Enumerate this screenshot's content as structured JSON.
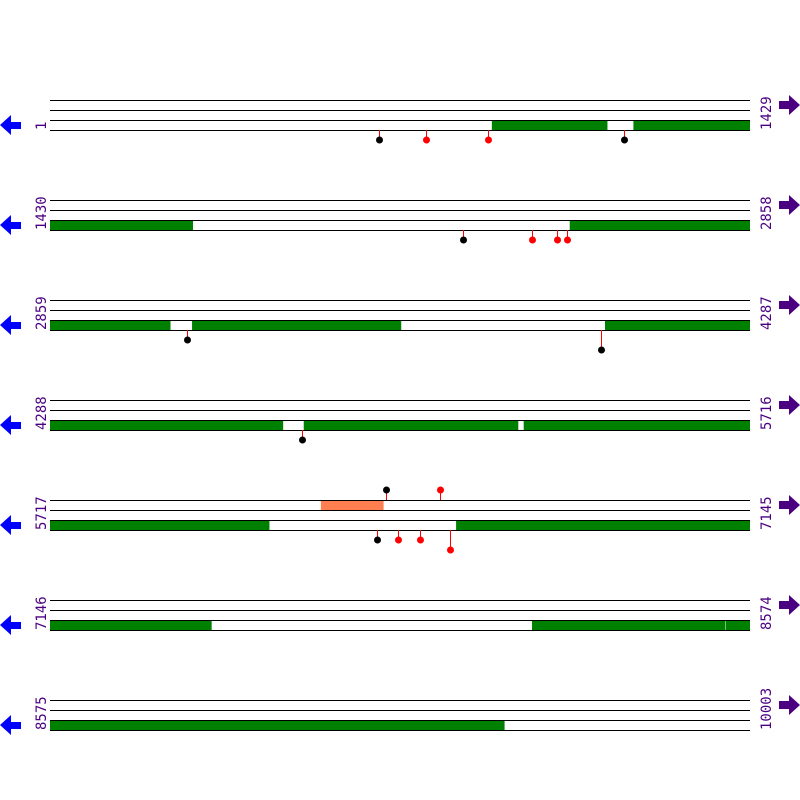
{
  "colors": {
    "track_line": "#000000",
    "segment_green": "#008000",
    "segment_orange": "#ff7f50",
    "stem": "#ff0000",
    "head_black": "#000000",
    "head_red": "#ff0000",
    "label": "#4b0082",
    "left_arrow": "#0000ff",
    "right_arrow": "#4b0082"
  },
  "icons": {
    "left": "arrow-left-icon",
    "right": "arrow-right-icon"
  },
  "rows": [
    {
      "start_label": "1",
      "end_label": "1429",
      "start": 1,
      "end": 1429,
      "segments": [
        {
          "track": 3,
          "from": 903,
          "to": 1138,
          "color": "green"
        },
        {
          "track": 3,
          "from": 1192,
          "to": 1429,
          "color": "green"
        }
      ],
      "markers": [
        {
          "pos": 672,
          "side": "below",
          "level": 1,
          "head": "black"
        },
        {
          "pos": 768,
          "side": "below",
          "level": 1,
          "head": "red"
        },
        {
          "pos": 895,
          "side": "below",
          "level": 1,
          "head": "red"
        },
        {
          "pos": 1172,
          "side": "below",
          "level": 1,
          "head": "black"
        }
      ]
    },
    {
      "start_label": "1430",
      "end_label": "2858",
      "start": 1430,
      "end": 2858,
      "segments": [
        {
          "track": 3,
          "from": 1430,
          "to": 1721,
          "color": "green"
        },
        {
          "track": 3,
          "from": 2491,
          "to": 2858,
          "color": "green"
        }
      ],
      "markers": [
        {
          "pos": 2273,
          "side": "below",
          "level": 1,
          "head": "black"
        },
        {
          "pos": 2414,
          "side": "below",
          "level": 1,
          "head": "red"
        },
        {
          "pos": 2465,
          "side": "below",
          "level": 1,
          "head": "red"
        },
        {
          "pos": 2485,
          "side": "below",
          "level": 1,
          "head": "red"
        }
      ]
    },
    {
      "start_label": "2859",
      "end_label": "4287",
      "start": 2859,
      "end": 4287,
      "segments": [
        {
          "track": 3,
          "from": 2859,
          "to": 3104,
          "color": "green"
        },
        {
          "track": 3,
          "from": 3149,
          "to": 3575,
          "color": "green"
        },
        {
          "track": 3,
          "from": 3992,
          "to": 4287,
          "color": "green"
        }
      ],
      "markers": [
        {
          "pos": 3139,
          "side": "below",
          "level": 1,
          "head": "black"
        },
        {
          "pos": 3984,
          "side": "below",
          "level": 2,
          "head": "black"
        }
      ]
    },
    {
      "start_label": "4288",
      "end_label": "5716",
      "start": 4288,
      "end": 5716,
      "segments": [
        {
          "track": 3,
          "from": 4288,
          "to": 4763,
          "color": "green"
        },
        {
          "track": 3,
          "from": 4806,
          "to": 5243,
          "color": "green"
        },
        {
          "track": 3,
          "from": 5255,
          "to": 5716,
          "color": "green"
        }
      ],
      "markers": [
        {
          "pos": 4802,
          "side": "below",
          "level": 1,
          "head": "black"
        }
      ]
    },
    {
      "start_label": "5717",
      "end_label": "7145",
      "start": 5717,
      "end": 7145,
      "segments": [
        {
          "track": 1,
          "from": 6270,
          "to": 6397,
          "color": "orange"
        },
        {
          "track": 3,
          "from": 5717,
          "to": 6164,
          "color": "green"
        },
        {
          "track": 3,
          "from": 6546,
          "to": 7145,
          "color": "green"
        }
      ],
      "markers": [
        {
          "pos": 6403,
          "side": "above",
          "level": 1,
          "head": "black"
        },
        {
          "pos": 6513,
          "side": "above",
          "level": 1,
          "head": "red"
        },
        {
          "pos": 6384,
          "side": "below",
          "level": 1,
          "head": "black"
        },
        {
          "pos": 6427,
          "side": "below",
          "level": 1,
          "head": "red"
        },
        {
          "pos": 6472,
          "side": "below",
          "level": 1,
          "head": "red"
        },
        {
          "pos": 6533,
          "side": "below",
          "level": 2,
          "head": "red"
        }
      ]
    },
    {
      "start_label": "7146",
      "end_label": "8574",
      "start": 7146,
      "end": 8574,
      "segments": [
        {
          "track": 3,
          "from": 7146,
          "to": 7475,
          "color": "green"
        },
        {
          "track": 3,
          "from": 8130,
          "to": 8524,
          "color": "green"
        },
        {
          "track": 3,
          "from": 8526,
          "to": 8574,
          "color": "green"
        }
      ],
      "markers": []
    },
    {
      "start_label": "8575",
      "end_label": "10003",
      "start": 8575,
      "end": 10003,
      "segments": [
        {
          "track": 3,
          "from": 8575,
          "to": 9502,
          "color": "green"
        }
      ],
      "markers": []
    }
  ]
}
